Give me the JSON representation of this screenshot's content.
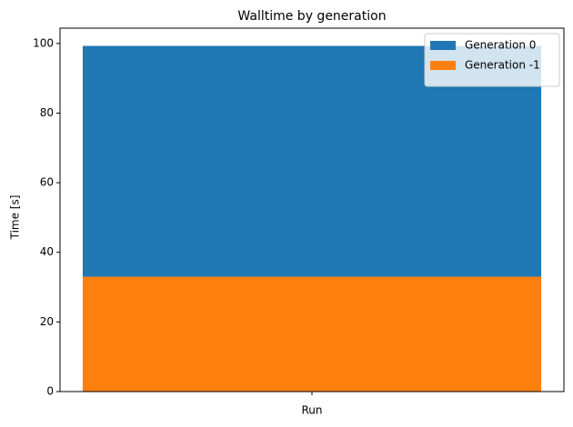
{
  "chart_data": {
    "type": "stacked_bar",
    "title": "Walltime by generation",
    "ylabel": "Time [s]",
    "categories": [
      "Run"
    ],
    "series": [
      {
        "name": "Generation 0",
        "color": "#1f77b4",
        "values": [
          66.3
        ]
      },
      {
        "name": "Generation -1",
        "color": "#ff7f0e",
        "values": [
          33
        ]
      }
    ],
    "ylim": [
      0,
      104.4
    ],
    "yticks": [
      0,
      20,
      40,
      60,
      80,
      100
    ],
    "grid": false,
    "legend": "upper right"
  }
}
